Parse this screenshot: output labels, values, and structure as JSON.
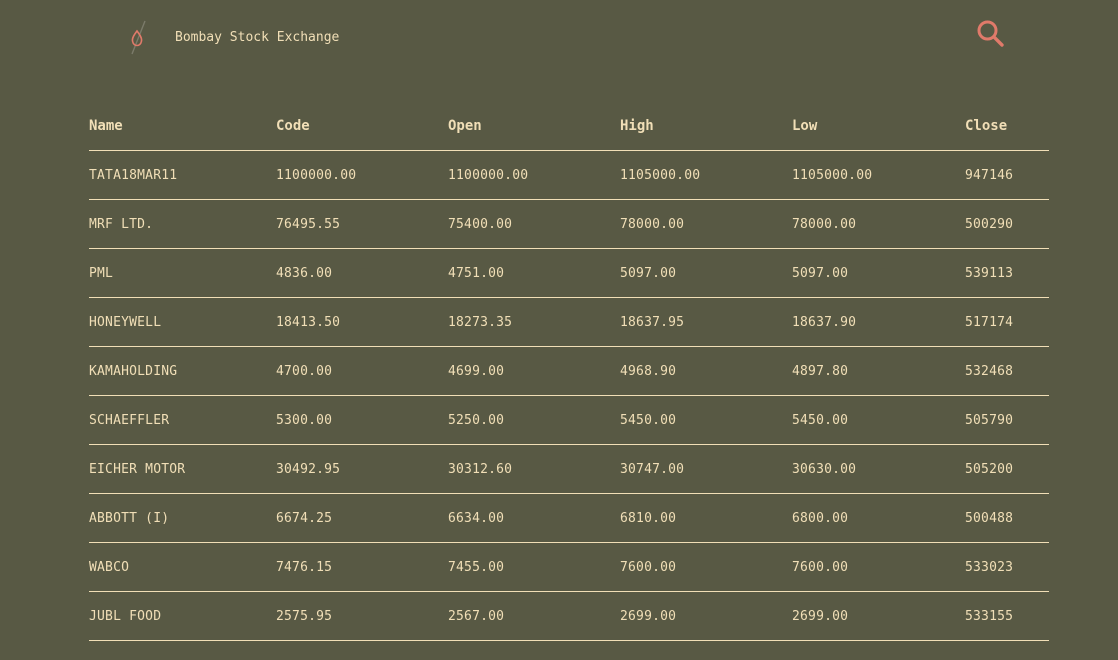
{
  "header": {
    "brand": "Bombay Stock Exchange",
    "logo_icon": "flame-logo-icon",
    "search_icon": "search-icon",
    "accent_color": "#e07a6a"
  },
  "table": {
    "columns": [
      "Name",
      "Code",
      "Open",
      "High",
      "Low",
      "Close"
    ],
    "rows": [
      [
        "TATA18MAR11",
        "1100000.00",
        "1100000.00",
        "1105000.00",
        "1105000.00",
        "947146"
      ],
      [
        "MRF LTD.",
        "76495.55",
        "75400.00",
        "78000.00",
        "78000.00",
        "500290"
      ],
      [
        "PML",
        "4836.00",
        "4751.00",
        "5097.00",
        "5097.00",
        "539113"
      ],
      [
        "HONEYWELL",
        "18413.50",
        "18273.35",
        "18637.95",
        "18637.90",
        "517174"
      ],
      [
        "KAMAHOLDING",
        "4700.00",
        "4699.00",
        "4968.90",
        "4897.80",
        "532468"
      ],
      [
        "SCHAEFFLER",
        "5300.00",
        "5250.00",
        "5450.00",
        "5450.00",
        "505790"
      ],
      [
        "EICHER MOTOR",
        "30492.95",
        "30312.60",
        "30747.00",
        "30630.00",
        "505200"
      ],
      [
        "ABBOTT (I)",
        "6674.25",
        "6634.00",
        "6810.00",
        "6800.00",
        "500488"
      ],
      [
        "WABCO",
        "7476.15",
        "7455.00",
        "7600.00",
        "7600.00",
        "533023"
      ],
      [
        "JUBL FOOD",
        "2575.95",
        "2567.00",
        "2699.00",
        "2699.00",
        "533155"
      ]
    ]
  }
}
